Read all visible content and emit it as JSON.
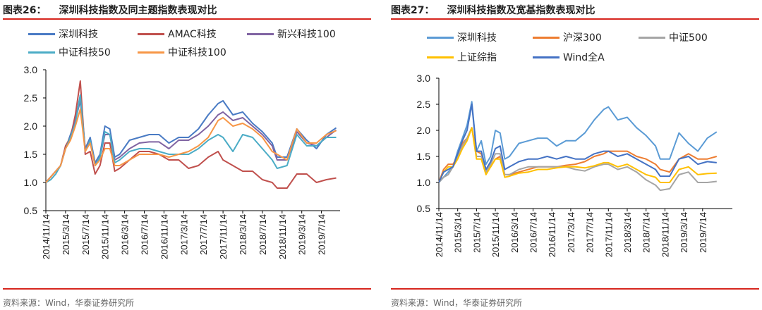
{
  "chart_data": [
    {
      "type": "line",
      "figure_label": "图表26：",
      "title": "深圳科技指数及同主题指数表现对比",
      "source": "资料来源：Wind，华泰证券研究所",
      "ylim": [
        0.5,
        3.0
      ],
      "yticks": [
        "0.5",
        "1.0",
        "1.5",
        "2.0",
        "2.5",
        "3.0"
      ],
      "xticks": [
        "2014/11/14",
        "2015/3/14",
        "2015/7/14",
        "2015/11/14",
        "2016/3/14",
        "2016/7/14",
        "2016/11/14",
        "2017/3/14",
        "2017/7/14",
        "2017/11/14",
        "2018/3/14",
        "2018/7/14",
        "2018/11/14",
        "2019/3/14",
        "2019/7/14"
      ],
      "legend": "top",
      "grid": false,
      "x": [
        "2014-11",
        "2014-12",
        "2015-01",
        "2015-02",
        "2015-03",
        "2015-04",
        "2015-05",
        "2015-06",
        "2015-07",
        "2015-08",
        "2015-09",
        "2015-10",
        "2015-11",
        "2015-12",
        "2016-01",
        "2016-02",
        "2016-04",
        "2016-06",
        "2016-08",
        "2016-10",
        "2016-12",
        "2017-02",
        "2017-04",
        "2017-06",
        "2017-08",
        "2017-10",
        "2017-11",
        "2018-01",
        "2018-03",
        "2018-05",
        "2018-07",
        "2018-09",
        "2018-10",
        "2018-12",
        "2019-02",
        "2019-04",
        "2019-06",
        "2019-08",
        "2019-10"
      ],
      "series": [
        {
          "name": "深圳科技",
          "color": "#4a7bc4",
          "values": [
            1.0,
            1.1,
            1.2,
            1.3,
            1.6,
            1.85,
            2.1,
            2.55,
            1.6,
            1.8,
            1.35,
            1.5,
            2.0,
            1.95,
            1.45,
            1.5,
            1.75,
            1.8,
            1.85,
            1.85,
            1.7,
            1.8,
            1.8,
            1.95,
            2.2,
            2.4,
            2.45,
            2.2,
            2.25,
            2.05,
            1.9,
            1.7,
            1.45,
            1.45,
            1.95,
            1.75,
            1.6,
            1.85,
            1.97
          ]
        },
        {
          "name": "AMAC科技",
          "color": "#c0504d",
          "values": [
            1.0,
            1.1,
            1.2,
            1.3,
            1.65,
            1.8,
            2.2,
            2.8,
            1.5,
            1.55,
            1.15,
            1.3,
            1.7,
            1.7,
            1.2,
            1.25,
            1.4,
            1.55,
            1.55,
            1.5,
            1.4,
            1.4,
            1.25,
            1.3,
            1.45,
            1.55,
            1.4,
            1.3,
            1.2,
            1.2,
            1.05,
            1.0,
            0.9,
            0.9,
            1.15,
            1.15,
            1.0,
            1.05,
            1.08
          ]
        },
        {
          "name": "新兴科技100",
          "color": "#8064a2",
          "values": [
            1.0,
            1.1,
            1.2,
            1.3,
            1.6,
            1.8,
            2.1,
            2.45,
            1.6,
            1.75,
            1.3,
            1.45,
            1.85,
            1.85,
            1.4,
            1.45,
            1.6,
            1.7,
            1.72,
            1.72,
            1.6,
            1.75,
            1.75,
            1.85,
            2.0,
            2.2,
            2.25,
            2.1,
            2.15,
            2.0,
            1.85,
            1.65,
            1.4,
            1.4,
            1.9,
            1.7,
            1.65,
            1.8,
            1.93
          ]
        },
        {
          "name": "中证科技50",
          "color": "#4bacc6",
          "values": [
            1.0,
            1.05,
            1.15,
            1.3,
            1.6,
            1.8,
            2.05,
            2.55,
            1.55,
            1.75,
            1.3,
            1.45,
            1.9,
            1.85,
            1.35,
            1.4,
            1.55,
            1.6,
            1.6,
            1.55,
            1.5,
            1.5,
            1.5,
            1.6,
            1.75,
            1.85,
            1.8,
            1.55,
            1.85,
            1.8,
            1.6,
            1.4,
            1.25,
            1.3,
            1.85,
            1.65,
            1.65,
            1.8,
            1.8
          ]
        },
        {
          "name": "中证科技100",
          "color": "#f79646",
          "values": [
            1.0,
            1.1,
            1.2,
            1.3,
            1.6,
            1.75,
            2.0,
            2.3,
            1.55,
            1.7,
            1.3,
            1.4,
            1.6,
            1.6,
            1.3,
            1.3,
            1.4,
            1.5,
            1.5,
            1.5,
            1.45,
            1.5,
            1.55,
            1.65,
            1.8,
            2.1,
            2.15,
            2.0,
            2.05,
            1.95,
            1.8,
            1.55,
            1.5,
            1.4,
            1.95,
            1.7,
            1.7,
            1.85,
            1.92
          ]
        }
      ]
    },
    {
      "type": "line",
      "figure_label": "图表27：",
      "title": "深圳科技指数及宽基指数表现对比",
      "source": "资料来源：Wind，华泰证券研究所",
      "ylim": [
        0.5,
        3.0
      ],
      "yticks": [
        "0.5",
        "1.0",
        "1.5",
        "2.0",
        "2.5",
        "3.0"
      ],
      "xticks": [
        "2014/11/14",
        "2015/3/14",
        "2015/7/14",
        "2015/11/14",
        "2016/3/14",
        "2016/7/14",
        "2016/11/14",
        "2017/3/14",
        "2017/7/14",
        "2017/11/14",
        "2018/3/14",
        "2018/7/14",
        "2018/11/14",
        "2019/3/14",
        "2019/7/14"
      ],
      "legend": "top",
      "grid": false,
      "x": [
        "2014-11",
        "2014-12",
        "2015-01",
        "2015-02",
        "2015-03",
        "2015-04",
        "2015-05",
        "2015-06",
        "2015-07",
        "2015-08",
        "2015-09",
        "2015-10",
        "2015-11",
        "2015-12",
        "2016-01",
        "2016-02",
        "2016-04",
        "2016-06",
        "2016-08",
        "2016-10",
        "2016-12",
        "2017-02",
        "2017-04",
        "2017-06",
        "2017-08",
        "2017-10",
        "2017-11",
        "2018-01",
        "2018-03",
        "2018-05",
        "2018-07",
        "2018-09",
        "2018-10",
        "2018-12",
        "2019-02",
        "2019-04",
        "2019-06",
        "2019-08",
        "2019-10"
      ],
      "series": [
        {
          "name": "深圳科技",
          "color": "#5b9bd5",
          "values": [
            1.0,
            1.1,
            1.2,
            1.3,
            1.6,
            1.85,
            2.1,
            2.55,
            1.6,
            1.8,
            1.35,
            1.5,
            2.0,
            1.95,
            1.45,
            1.5,
            1.75,
            1.8,
            1.85,
            1.85,
            1.7,
            1.8,
            1.8,
            1.95,
            2.2,
            2.4,
            2.45,
            2.2,
            2.25,
            2.05,
            1.9,
            1.7,
            1.45,
            1.45,
            1.95,
            1.75,
            1.6,
            1.85,
            1.97
          ]
        },
        {
          "name": "沪深300",
          "color": "#ed7d31",
          "values": [
            1.0,
            1.25,
            1.35,
            1.35,
            1.5,
            1.75,
            1.85,
            2.05,
            1.6,
            1.55,
            1.25,
            1.3,
            1.45,
            1.5,
            1.15,
            1.15,
            1.2,
            1.25,
            1.3,
            1.3,
            1.3,
            1.33,
            1.35,
            1.4,
            1.5,
            1.55,
            1.6,
            1.6,
            1.6,
            1.5,
            1.45,
            1.35,
            1.25,
            1.2,
            1.45,
            1.55,
            1.45,
            1.45,
            1.5
          ]
        },
        {
          "name": "中证500",
          "color": "#a5a5a5",
          "values": [
            1.0,
            1.1,
            1.15,
            1.3,
            1.5,
            1.7,
            1.85,
            2.05,
            1.5,
            1.5,
            1.2,
            1.35,
            1.55,
            1.55,
            1.15,
            1.15,
            1.25,
            1.3,
            1.3,
            1.3,
            1.3,
            1.3,
            1.25,
            1.22,
            1.3,
            1.35,
            1.35,
            1.25,
            1.3,
            1.2,
            1.05,
            0.95,
            0.85,
            0.88,
            1.15,
            1.2,
            1.0,
            1.0,
            1.02
          ]
        },
        {
          "name": "上证综指",
          "color": "#ffc000",
          "values": [
            1.0,
            1.2,
            1.3,
            1.3,
            1.45,
            1.65,
            1.8,
            2.05,
            1.45,
            1.45,
            1.15,
            1.3,
            1.45,
            1.45,
            1.1,
            1.12,
            1.18,
            1.2,
            1.25,
            1.25,
            1.28,
            1.3,
            1.3,
            1.28,
            1.32,
            1.38,
            1.38,
            1.3,
            1.35,
            1.25,
            1.15,
            1.1,
            1.0,
            1.0,
            1.25,
            1.3,
            1.15,
            1.17,
            1.18
          ]
        },
        {
          "name": "Wind全A",
          "color": "#4472c4",
          "values": [
            1.0,
            1.2,
            1.25,
            1.3,
            1.55,
            1.8,
            2.0,
            2.5,
            1.6,
            1.6,
            1.25,
            1.4,
            1.65,
            1.7,
            1.25,
            1.3,
            1.4,
            1.45,
            1.45,
            1.5,
            1.45,
            1.5,
            1.45,
            1.45,
            1.55,
            1.6,
            1.6,
            1.5,
            1.55,
            1.45,
            1.35,
            1.25,
            1.12,
            1.12,
            1.45,
            1.5,
            1.35,
            1.4,
            1.38
          ]
        }
      ]
    }
  ]
}
